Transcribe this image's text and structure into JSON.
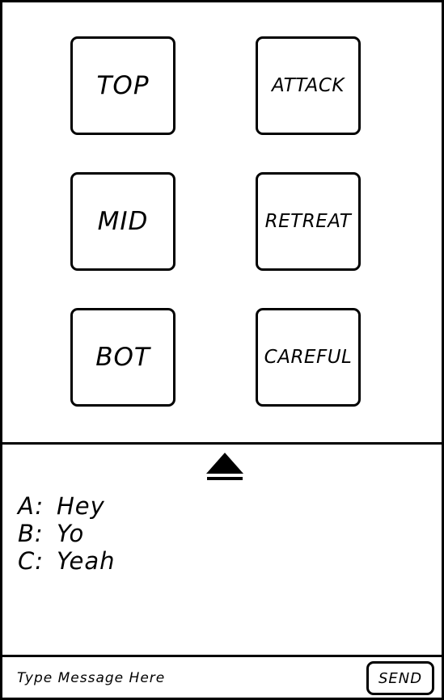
{
  "commands": {
    "top": "TOP",
    "mid": "MID",
    "bot": "BOT",
    "attack": "ATTACK",
    "retreat": "RETREAT",
    "careful": "CAREFUL"
  },
  "chat": {
    "toggle_icon": "eject-triangle-icon",
    "messages": [
      {
        "sender": "A:",
        "text": "Hey"
      },
      {
        "sender": "B:",
        "text": "Yo"
      },
      {
        "sender": "C:",
        "text": "Yeah"
      }
    ]
  },
  "composer": {
    "placeholder": "Type Message Here",
    "send_label": "SEND"
  }
}
